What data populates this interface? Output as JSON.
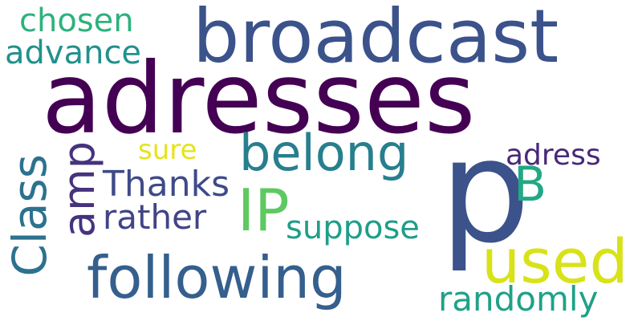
{
  "title": "",
  "words": {
    "adresses": {
      "text": "adresses",
      "color": "#440154"
    },
    "broadcast": {
      "text": "broadcast",
      "color": "#3b528b"
    },
    "p": {
      "text": "p",
      "color": "#3b528b"
    },
    "following": {
      "text": "following",
      "color": "#355f8d"
    },
    "used": {
      "text": "used",
      "color": "#d8e219"
    },
    "belong": {
      "text": "belong",
      "color": "#277f8e"
    },
    "ip": {
      "text": "IP",
      "color": "#5ec962"
    },
    "class": {
      "text": "Class",
      "color": "#2c728e"
    },
    "amp": {
      "text": "amp",
      "color": "#46337e"
    },
    "b": {
      "text": "B",
      "color": "#22a884"
    },
    "thanks": {
      "text": "Thanks",
      "color": "#3e4a89"
    },
    "rather": {
      "text": "rather",
      "color": "#414487"
    },
    "suppose": {
      "text": "suppose",
      "color": "#1f9e89"
    },
    "randomly": {
      "text": "randomly",
      "color": "#1fa187"
    },
    "adress": {
      "text": "adress",
      "color": "#482878"
    },
    "sure": {
      "text": "sure",
      "color": "#e5e419"
    },
    "chosen": {
      "text": "chosen",
      "color": "#2db27d"
    },
    "advance": {
      "text": "advance",
      "color": "#21918c"
    }
  }
}
